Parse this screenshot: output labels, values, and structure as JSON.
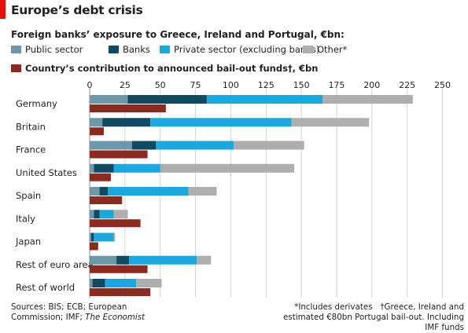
{
  "title": "Europe’s debt crisis",
  "subtitle": "Foreign banks’ exposure to Greece, Ireland and Portugal, €bn:",
  "legend": {
    "public_sector": "Public sector",
    "banks": "Banks",
    "private_sector": "Private sector (excluding banks)",
    "other": "Other*",
    "contribution": "Country’s contribution to announced bail-out funds†, €bn"
  },
  "colors": {
    "public_sector": "#6b98aa",
    "banks": "#0e4a61",
    "private_sector": "#1aa8e0",
    "other": "#aeaeae",
    "contribution": "#8b2a1d",
    "accent": "#e3120b"
  },
  "source": {
    "prefix": "Sources: BIS; ECB; European Commission; IMF;",
    "italic": "The Economist"
  },
  "notes": {
    "a": "*Includes derivates",
    "b": "†Greece, Ireland and estimated €80bn Portugal bail-out. Including IMF funds"
  },
  "chart_data": {
    "type": "bar",
    "orientation": "horizontal",
    "categories": [
      "Germany",
      "Britain",
      "France",
      "United States",
      "Spain",
      "Italy",
      "Japan",
      "Rest of euro area",
      "Rest of world"
    ],
    "xlim": [
      0,
      250
    ],
    "xticks": [
      0,
      25,
      50,
      75,
      100,
      125,
      150,
      175,
      200,
      225,
      250
    ],
    "grid": true,
    "stacked_series": [
      {
        "key": "public_sector",
        "name": "Public sector",
        "values": [
          27,
          9,
          30,
          3,
          7,
          3,
          1,
          19,
          2
        ]
      },
      {
        "key": "banks",
        "name": "Banks",
        "values": [
          56,
          34,
          17,
          14,
          6,
          4,
          2,
          9,
          9
        ]
      },
      {
        "key": "private_sector",
        "name": "Private sector (excluding banks)",
        "values": [
          82,
          100,
          55,
          33,
          57,
          10,
          14,
          48,
          22
        ]
      },
      {
        "key": "other",
        "name": "Other*",
        "values": [
          64,
          55,
          50,
          95,
          20,
          10,
          1,
          10,
          18
        ]
      }
    ],
    "contribution_series": {
      "key": "contribution",
      "name": "Country’s contribution to announced bail-out funds†, €bn",
      "values": [
        54,
        10,
        41,
        15,
        23,
        36,
        6,
        41,
        43
      ]
    }
  }
}
